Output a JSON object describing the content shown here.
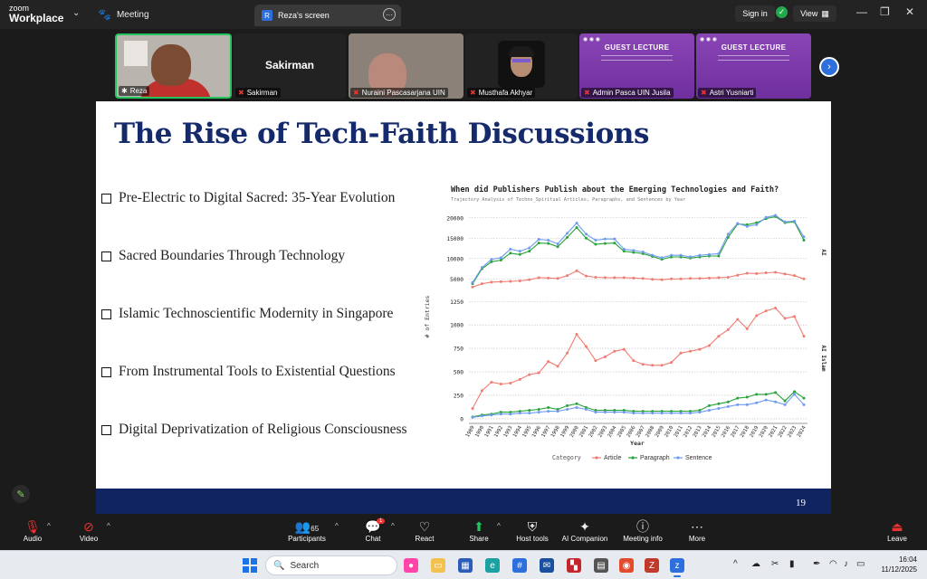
{
  "app": {
    "brand_line1": "zoom",
    "brand_line2": "Workplace",
    "meeting_tab": "Meeting",
    "screen_tab": "Reza's screen",
    "screen_tab_badge": "R",
    "sign_in": "Sign in",
    "view": "View"
  },
  "participants": [
    {
      "name": "Reza"
    },
    {
      "name": "Sakirman",
      "display_text": "Sakirman"
    },
    {
      "name": "Nuraini Pascasarjana UIN"
    },
    {
      "name": "Musthafa Akhyar"
    },
    {
      "name": "Admin Pasca UIN Jusila",
      "banner": "GUEST LECTURE"
    },
    {
      "name": "Astri Yusniarti",
      "banner": "GUEST LECTURE"
    }
  ],
  "slide": {
    "title": "The Rise of Tech-Faith Discussions",
    "bullets": [
      "Pre-Electric to Digital Sacred: 35-Year Evolution",
      "Sacred Boundaries Through Technology",
      "Islamic Technoscientific Modernity in Singapore",
      "From Instrumental Tools to Existential Questions",
      "Digital Deprivatization of Religious Consciousness"
    ],
    "page_number": "19"
  },
  "chart_data": {
    "type": "line",
    "title": "When did Publishers Publish about the Emerging Technologies and Faith?",
    "subtitle": "Trajectory Analysis of Techno_Spiritual Articles, Paragraphs, and Sentences by Year",
    "xlabel": "Year",
    "ylabel": "# of Entries",
    "legend_title": "Category",
    "legend_position": "bottom",
    "x": [
      1989,
      1990,
      1991,
      1992,
      1993,
      1994,
      1995,
      1996,
      1997,
      1998,
      1999,
      2000,
      2001,
      2002,
      2003,
      2004,
      2005,
      2006,
      2007,
      2008,
      2009,
      2010,
      2011,
      2012,
      2013,
      2014,
      2015,
      2016,
      2017,
      2018,
      2019,
      2020,
      2021,
      2022,
      2023,
      2024
    ],
    "panels": [
      {
        "facet_label": "AI",
        "y_ticks": [
          5000,
          10000,
          15000,
          20000
        ],
        "ylim": [
          1500,
          21500
        ],
        "series": [
          {
            "name": "Article",
            "color": "#f07c72",
            "values": [
              3000,
              3800,
              4200,
              4300,
              4400,
              4500,
              4800,
              5300,
              5200,
              5100,
              5800,
              7000,
              5700,
              5400,
              5300,
              5300,
              5300,
              5200,
              5100,
              4900,
              4800,
              5000,
              5000,
              5100,
              5100,
              5200,
              5300,
              5400,
              5900,
              6400,
              6300,
              6500,
              6600,
              6200,
              5800,
              5000
            ]
          },
          {
            "name": "Paragraph",
            "color": "#27a33b",
            "values": [
              3800,
              7500,
              9200,
              9600,
              11300,
              11000,
              11800,
              13800,
              13700,
              12900,
              15200,
              17600,
              15000,
              13500,
              13700,
              13800,
              11800,
              11500,
              11200,
              10500,
              9800,
              10400,
              10400,
              10100,
              10400,
              10600,
              10600,
              15200,
              18500,
              18300,
              18800,
              19800,
              20300,
              18800,
              19000,
              14500
            ]
          },
          {
            "name": "Sentence",
            "color": "#6f9bf0",
            "values": [
              4100,
              7800,
              9800,
              10200,
              12300,
              11800,
              12600,
              14700,
              14500,
              13600,
              16200,
              18700,
              16000,
              14500,
              14800,
              14800,
              12300,
              12000,
              11600,
              10800,
              10200,
              10800,
              10800,
              10400,
              10800,
              11000,
              11200,
              16000,
              18600,
              17900,
              18300,
              20100,
              20600,
              19000,
              19200,
              15300
            ]
          }
        ]
      },
      {
        "facet_label": "AI Islam",
        "y_ticks": [
          0,
          250,
          500,
          750,
          1000,
          1250
        ],
        "ylim": [
          -30,
          1320
        ],
        "series": [
          {
            "name": "Article",
            "color": "#f07c72",
            "values": [
              110,
              300,
              390,
              370,
              380,
              420,
              470,
              490,
              610,
              560,
              700,
              900,
              770,
              620,
              660,
              720,
              740,
              620,
              580,
              570,
              570,
              600,
              700,
              720,
              740,
              780,
              880,
              950,
              1060,
              960,
              1100,
              1150,
              1180,
              1070,
              1090,
              880
            ]
          },
          {
            "name": "Paragraph",
            "color": "#27a33b",
            "values": [
              20,
              40,
              50,
              70,
              70,
              80,
              90,
              100,
              120,
              100,
              140,
              160,
              120,
              90,
              90,
              90,
              90,
              80,
              80,
              80,
              80,
              80,
              80,
              80,
              90,
              140,
              160,
              180,
              220,
              230,
              260,
              260,
              280,
              190,
              290,
              220
            ]
          },
          {
            "name": "Sentence",
            "color": "#6f9bf0",
            "values": [
              15,
              30,
              40,
              50,
              50,
              60,
              60,
              70,
              80,
              80,
              100,
              120,
              100,
              70,
              70,
              70,
              70,
              60,
              60,
              60,
              60,
              60,
              60,
              60,
              70,
              90,
              110,
              130,
              150,
              150,
              170,
              200,
              180,
              150,
              260,
              150
            ]
          }
        ]
      }
    ]
  },
  "toolbar": {
    "audio": "Audio",
    "video": "Video",
    "participants": "Participants",
    "participants_count": "65",
    "chat": "Chat",
    "chat_badge": "1",
    "react": "React",
    "share": "Share",
    "host_tools": "Host tools",
    "ai_companion": "AI Companion",
    "meeting_info": "Meeting info",
    "more": "More",
    "leave": "Leave"
  },
  "taskbar": {
    "search_placeholder": "Search",
    "time": "16:04",
    "date": "11/12/2025"
  }
}
